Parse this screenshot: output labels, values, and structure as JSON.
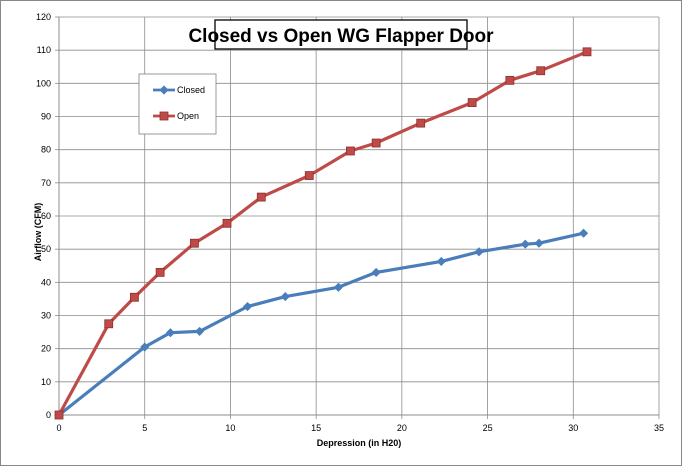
{
  "chart_data": {
    "type": "line",
    "title": "Closed vs Open WG Flapper Door",
    "xlabel": "Depression (in H20)",
    "ylabel": "Airflow (CFM)",
    "xlim": [
      0,
      35
    ],
    "ylim": [
      0,
      120
    ],
    "x_ticks": [
      "0",
      "5",
      "10",
      "15",
      "20",
      "25",
      "30",
      "35"
    ],
    "y_ticks": [
      "0",
      "10",
      "20",
      "30",
      "40",
      "50",
      "60",
      "70",
      "80",
      "90",
      "100",
      "110",
      "120"
    ],
    "grid": true,
    "legend_position": "top-left",
    "series": [
      {
        "name": "Closed",
        "color": "#4a7ebb",
        "marker": "diamond",
        "x": [
          0,
          5,
          6.5,
          8.2,
          11,
          13.2,
          16.3,
          18.5,
          22.3,
          24.5,
          27.2,
          28,
          30.6
        ],
        "y": [
          0,
          20.5,
          24.8,
          25.2,
          32.7,
          35.7,
          38.5,
          43,
          46.3,
          49.2,
          51.5,
          51.8,
          54.8
        ]
      },
      {
        "name": "Open",
        "color": "#be4b48",
        "marker": "square",
        "x": [
          0,
          2.9,
          4.4,
          5.9,
          7.9,
          9.8,
          11.8,
          14.6,
          17,
          18.5,
          21.1,
          24.1,
          26.3,
          28.1,
          30.8
        ],
        "y": [
          0,
          27.5,
          35.5,
          43,
          51.8,
          57.8,
          65.7,
          72.2,
          79.6,
          82,
          88,
          94.2,
          100.9,
          103.8,
          109.5
        ]
      }
    ]
  }
}
